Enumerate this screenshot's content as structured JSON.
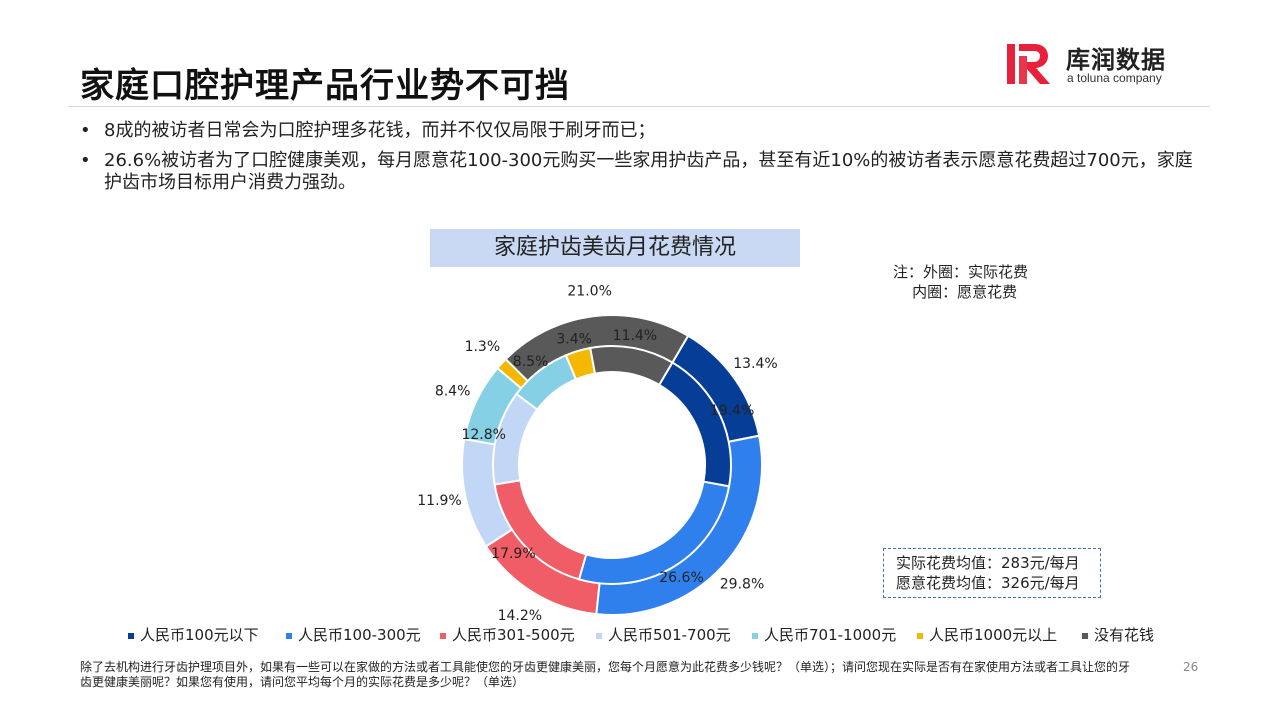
{
  "slide": {
    "title": "家庭口腔护理产品行业势不可挡",
    "bullets": [
      "8成的被访者日常会为口腔护理多花钱，而并不仅仅局限于刷牙而已；",
      "26.6%被访者为了口腔健康美观，每月愿意花100-300元购买一些家用护齿产品，甚至有近10%的被访者表示愿意花费超过700元，家庭护齿市场目标用户消费力强劲。"
    ],
    "footnote": "除了去机构进行牙齿护理项目外，如果有一些可以在家做的方法或者工具能使您的牙齿更健康美丽，您每个月愿意为此花费多少钱呢？（单选）；请问您现在实际是否有在家使用方法或者工具让您的牙齿更健康美丽呢？如果您有使用，请问您平均每个月的实际花费是多少呢？（单选）",
    "page_number": "26"
  },
  "logo": {
    "name": "库润数据",
    "sub": "a toluna company"
  },
  "note": {
    "line1": "注：外圈：实际花费",
    "line2": "    内圈：愿意花费"
  },
  "averages": {
    "actual": "实际花费均值：283元/每月",
    "willing": "愿意花费均值：326元/每月"
  },
  "chart_data": {
    "type": "pie",
    "variant": "double-donut",
    "title": "家庭护齿美齿月花费情况",
    "categories": [
      "人民币100元以下",
      "人民币100-300元",
      "人民币301-500元",
      "人民币501-700元",
      "人民币701-1000元",
      "人民币1000元以上",
      "没有花钱"
    ],
    "colors": [
      "#063d96",
      "#2f80ed",
      "#f05d66",
      "#c2d6f5",
      "#86d0e6",
      "#f5b800",
      "#595959"
    ],
    "series": [
      {
        "name": "外圈：实际花费",
        "ring": "outer",
        "values": [
          13.4,
          29.8,
          14.2,
          11.9,
          8.4,
          1.3,
          21.0
        ],
        "labels": [
          "13.4%",
          "29.8%",
          "14.2%",
          "11.9%",
          "8.4%",
          "1.3%",
          "21.0%"
        ]
      },
      {
        "name": "内圈：愿意花费",
        "ring": "inner",
        "values": [
          19.4,
          26.6,
          17.9,
          12.8,
          8.5,
          3.4,
          11.4
        ],
        "labels": [
          "19.4%",
          "26.6%",
          "17.9%",
          "12.8%",
          "8.5%",
          "3.4%",
          "11.4%"
        ]
      }
    ],
    "legend_position": "bottom"
  }
}
